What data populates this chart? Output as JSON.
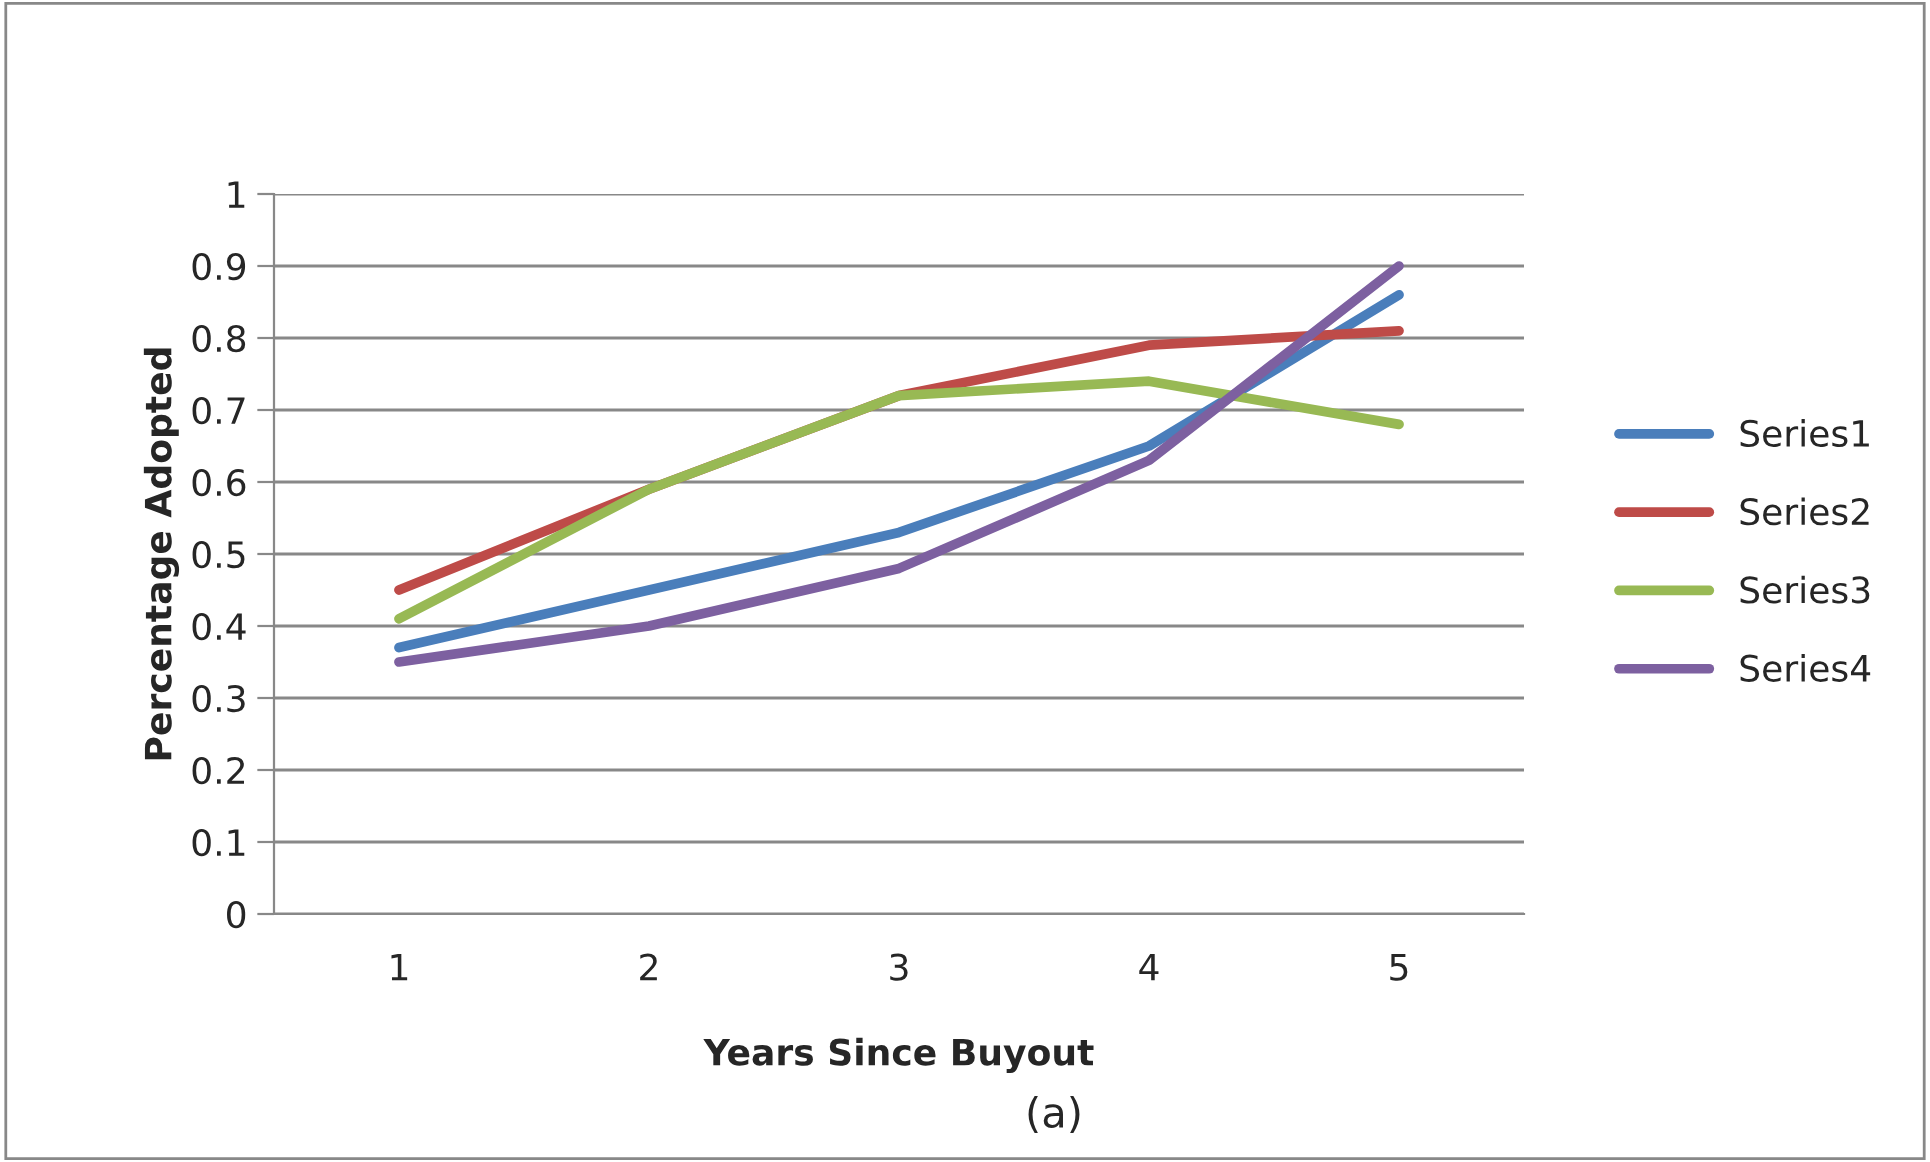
{
  "chart_data": {
    "type": "line",
    "xlabel": "Years Since Buyout",
    "ylabel": "Percentage Adopted",
    "categories": [
      "1",
      "2",
      "3",
      "4",
      "5"
    ],
    "series": [
      {
        "name": "Series1",
        "color": "#4a7ebb",
        "values": [
          0.37,
          0.45,
          0.53,
          0.65,
          0.86
        ]
      },
      {
        "name": "Series2",
        "color": "#be4b48",
        "values": [
          0.45,
          0.59,
          0.72,
          0.79,
          0.81
        ]
      },
      {
        "name": "Series3",
        "color": "#98b954",
        "values": [
          0.41,
          0.59,
          0.72,
          0.74,
          0.68
        ]
      },
      {
        "name": "Series4",
        "color": "#7d60a0",
        "values": [
          0.35,
          0.4,
          0.48,
          0.63,
          0.9
        ]
      }
    ],
    "ylim": [
      0,
      1
    ],
    "yticks": [
      0,
      0.1,
      0.2,
      0.3,
      0.4,
      0.5,
      0.6,
      0.7,
      0.8,
      0.9,
      1
    ],
    "grid": "y",
    "legend": "right",
    "marker": "none",
    "line_style": "solid",
    "annotations": [
      "(a)"
    ]
  }
}
